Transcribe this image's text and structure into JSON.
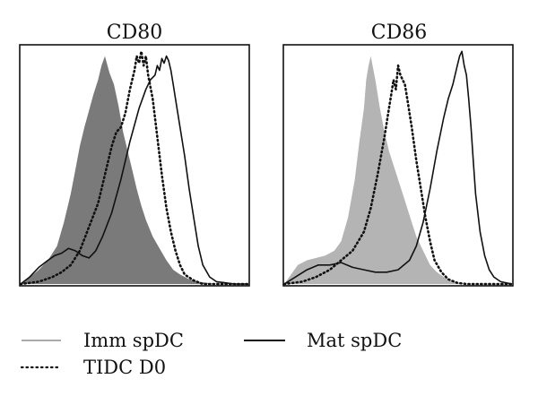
{
  "chart_data": [
    {
      "type": "area",
      "title": "CD80",
      "xlabel": "",
      "ylabel": "",
      "xlim": [
        0,
        100
      ],
      "ylim": [
        0,
        100
      ],
      "grid": false,
      "series": [
        {
          "name": "Imm spDC",
          "style": "filled",
          "color": "#7a7a7a",
          "x": [
            0,
            3,
            8,
            12,
            16,
            19,
            22,
            24,
            26,
            28,
            30,
            32,
            34,
            35.5,
            37,
            39,
            41,
            43,
            45,
            47,
            49,
            51,
            53,
            55,
            58,
            61,
            64,
            67,
            70,
            74,
            78,
            82,
            86,
            100
          ],
          "y": [
            0,
            2,
            6,
            10,
            16,
            26,
            38,
            48,
            58,
            66,
            73,
            80,
            86,
            92,
            96,
            89,
            84,
            75,
            64,
            56,
            48,
            40,
            33,
            27,
            20,
            15,
            10,
            6,
            4,
            2,
            1,
            0.5,
            0,
            0
          ]
        },
        {
          "name": "TIDC D0",
          "style": "dotted",
          "color": "#111111",
          "x": [
            0,
            8,
            14,
            18,
            22,
            26,
            30,
            34,
            37,
            40,
            42,
            44,
            46,
            48,
            50,
            51,
            52,
            53,
            54,
            55,
            56,
            58,
            60,
            62,
            64,
            66,
            68,
            70,
            72,
            76,
            80,
            100
          ],
          "y": [
            0,
            1,
            3,
            5,
            8,
            14,
            24,
            34,
            46,
            58,
            64,
            66,
            72,
            82,
            90,
            96,
            93,
            98,
            92,
            96,
            88,
            78,
            62,
            46,
            32,
            22,
            14,
            8,
            4,
            1.5,
            0,
            0
          ]
        },
        {
          "name": "Mat spDC",
          "style": "solid",
          "color": "#111111",
          "x": [
            0,
            4,
            8,
            12,
            15,
            18,
            21,
            24,
            27,
            30,
            33,
            36,
            40,
            44,
            48,
            52,
            55,
            57,
            59,
            60,
            61,
            62,
            63,
            64,
            65,
            66,
            67,
            68,
            70,
            72,
            74,
            76,
            78,
            80,
            83,
            86,
            90,
            94,
            100
          ],
          "y": [
            0,
            3,
            7,
            10,
            12,
            13,
            15,
            14,
            12,
            11,
            14,
            20,
            30,
            44,
            60,
            74,
            82,
            86,
            88,
            92,
            90,
            95,
            93,
            96,
            94,
            90,
            84,
            78,
            66,
            54,
            40,
            28,
            16,
            8,
            3,
            1,
            0.5,
            0,
            0
          ]
        }
      ]
    },
    {
      "type": "area",
      "title": "CD86",
      "xlabel": "",
      "ylabel": "",
      "xlim": [
        0,
        100
      ],
      "ylim": [
        0,
        100
      ],
      "grid": false,
      "series": [
        {
          "name": "Imm spDC",
          "style": "filled",
          "color": "#b4b4b4",
          "x": [
            0,
            3,
            6,
            10,
            14,
            18,
            22,
            25,
            28,
            31,
            33,
            35,
            36,
            37,
            38,
            40,
            42,
            44,
            46,
            48,
            50,
            52,
            54,
            56,
            58,
            61,
            64,
            67,
            70,
            73,
            76,
            80,
            100
          ],
          "y": [
            0,
            4,
            8,
            10,
            11,
            12,
            14,
            18,
            28,
            44,
            60,
            74,
            86,
            92,
            96,
            86,
            74,
            64,
            56,
            50,
            44,
            38,
            32,
            26,
            20,
            14,
            8,
            5,
            3,
            1.5,
            0.5,
            0,
            0
          ]
        },
        {
          "name": "TIDC D0",
          "style": "dotted",
          "color": "#111111",
          "x": [
            0,
            8,
            14,
            20,
            25,
            30,
            35,
            38,
            41,
            44,
            46,
            47,
            48,
            49,
            50,
            51,
            52,
            53,
            54,
            56,
            58,
            60,
            62,
            64,
            66,
            69,
            72,
            76,
            80,
            100
          ],
          "y": [
            0,
            1,
            3,
            6,
            10,
            14,
            22,
            32,
            46,
            62,
            74,
            80,
            86,
            82,
            92,
            88,
            86,
            84,
            78,
            66,
            52,
            40,
            28,
            18,
            10,
            5,
            2,
            0.5,
            0,
            0
          ]
        },
        {
          "name": "Mat spDC",
          "style": "solid",
          "color": "#111111",
          "x": [
            0,
            5,
            10,
            15,
            20,
            25,
            30,
            35,
            40,
            45,
            50,
            55,
            58,
            61,
            64,
            67,
            70,
            72,
            74,
            75,
            76,
            77,
            78,
            79,
            80,
            81,
            82,
            83,
            84,
            86,
            88,
            90,
            92,
            95,
            100
          ],
          "y": [
            0,
            3,
            6,
            8,
            8,
            9,
            7,
            6,
            5,
            5,
            6,
            10,
            16,
            26,
            40,
            56,
            70,
            78,
            84,
            88,
            92,
            96,
            98,
            92,
            88,
            78,
            66,
            52,
            38,
            22,
            12,
            6,
            3,
            1,
            0
          ]
        }
      ]
    }
  ],
  "legend": [
    {
      "label": "Imm spDC",
      "style": "light-gray-line"
    },
    {
      "label": "Mat spDC",
      "style": "solid"
    },
    {
      "label": "TIDC D0",
      "style": "dotted"
    }
  ]
}
